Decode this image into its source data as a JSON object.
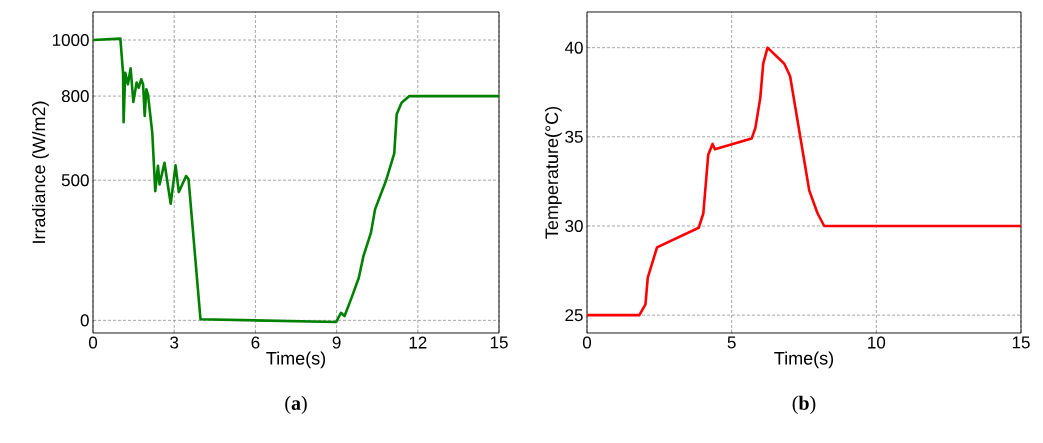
{
  "chart_data": [
    {
      "type": "line",
      "xlabel": "Time(s)",
      "ylabel": "Irradiance (W/m2)",
      "annotations": [
        "(**a**)"
      ],
      "grid": true,
      "xlim": [
        0,
        15
      ],
      "ylim": [
        -45,
        1100
      ],
      "xticks": [
        0,
        3,
        6,
        9,
        12,
        15
      ],
      "yticks": [
        0,
        500,
        800,
        1000
      ],
      "x": [
        0,
        1.01,
        1.11,
        1.13,
        1.19,
        1.29,
        1.39,
        1.49,
        1.61,
        1.69,
        1.78,
        1.85,
        1.91,
        1.97,
        2.03,
        2.19,
        2.3,
        2.4,
        2.46,
        2.64,
        2.87,
        3.05,
        3.17,
        3.44,
        3.53,
        3.97,
        8.98,
        9.16,
        9.29,
        9.53,
        9.82,
        9.99,
        10.27,
        10.42,
        10.82,
        11.13,
        11.22,
        11.4,
        11.69,
        15
      ],
      "series": [
        {
          "color": "#008000",
          "values": [
            1000,
            1005,
            883,
            707,
            883,
            842,
            899,
            779,
            848,
            830,
            860,
            842,
            729,
            824,
            806,
            669,
            461,
            551,
            485,
            562,
            416,
            553,
            458,
            515,
            503,
            4,
            -6,
            27,
            15,
            75,
            152,
            229,
            313,
            396,
            497,
            596,
            735,
            776,
            800,
            800
          ]
        }
      ]
    },
    {
      "type": "line",
      "xlabel": "Time(s)",
      "ylabel": "Temperature(°C)",
      "annotations": [
        "(**b**)"
      ],
      "grid": true,
      "xlim": [
        0,
        15
      ],
      "ylim": [
        24,
        42
      ],
      "xticks": [
        0,
        5,
        10,
        15
      ],
      "yticks": [
        25,
        30,
        35,
        40
      ],
      "x": [
        0,
        1.81,
        2.02,
        2.1,
        2.42,
        3.86,
        4.02,
        4.19,
        4.34,
        4.42,
        5.69,
        5.82,
        5.99,
        6.09,
        6.24,
        6.82,
        7.02,
        7.68,
        7.97,
        8.2,
        15
      ],
      "series": [
        {
          "color": "#ff0000",
          "values": [
            25,
            25,
            25.6,
            27.1,
            28.8,
            29.9,
            30.7,
            34.0,
            34.6,
            34.3,
            34.9,
            35.5,
            37.2,
            39.1,
            40,
            39.1,
            38.4,
            32.0,
            30.7,
            30,
            30
          ]
        }
      ]
    }
  ]
}
